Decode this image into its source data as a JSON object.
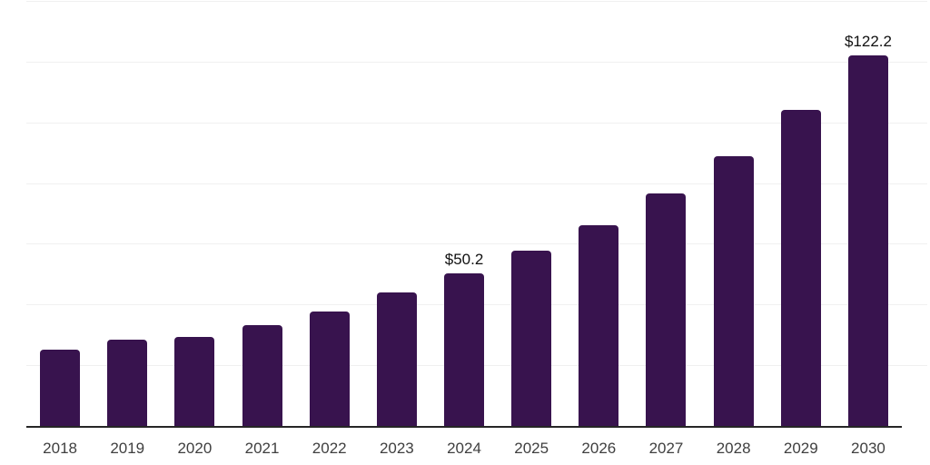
{
  "chart_data": {
    "type": "bar",
    "title": "",
    "xlabel": "",
    "ylabel": "",
    "categories": [
      "2018",
      "2019",
      "2020",
      "2021",
      "2022",
      "2023",
      "2024",
      "2025",
      "2026",
      "2027",
      "2028",
      "2029",
      "2030"
    ],
    "values": [
      25.2,
      28.5,
      29.4,
      33.2,
      37.7,
      44.0,
      50.2,
      57.7,
      66.0,
      76.5,
      89.0,
      104.2,
      122.2
    ],
    "data_labels": [
      {
        "category": "2024",
        "text": "$50.2"
      },
      {
        "category": "2030",
        "text": "$122.2"
      }
    ],
    "ylim": [
      0,
      140
    ],
    "grid_step": 20,
    "grid": true,
    "legend": false,
    "y_tick_labels_visible": false,
    "colors": {
      "bar": "#38134E",
      "background": "#FFFFFF",
      "gridline": "#F0F0F0",
      "axis_line": "#262626",
      "tick_label": "#3F3F3F",
      "value_label": "#111111"
    }
  }
}
